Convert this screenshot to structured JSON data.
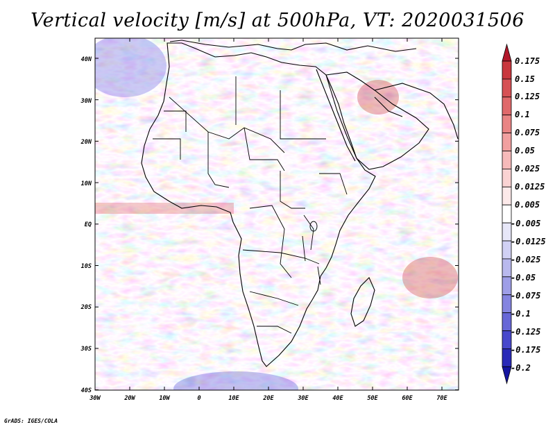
{
  "title": "Vertical velocity [m/s] at 500hPa, VT: 2020031506",
  "footer": "GrADS: IGES/COLA",
  "map": {
    "lat_labels": [
      "40N",
      "30N",
      "20N",
      "10N",
      "EQ",
      "10S",
      "20S",
      "30S",
      "40S"
    ],
    "lon_labels": [
      "30W",
      "20W",
      "10W",
      "0",
      "10E",
      "20E",
      "30E",
      "40E",
      "50E",
      "60E",
      "70E"
    ],
    "lon_range": [
      -30,
      75
    ],
    "lat_range": [
      -40,
      45
    ]
  },
  "colorbar": {
    "labels": [
      "0.175",
      "0.15",
      "0.125",
      "0.1",
      "0.075",
      "0.05",
      "0.025",
      "0.0125",
      "0.005",
      "-0.005",
      "-0.0125",
      "-0.025",
      "-0.05",
      "-0.075",
      "-0.1",
      "-0.125",
      "-0.175",
      "-0.2"
    ],
    "colors": [
      "#b2182b",
      "#c9373e",
      "#d65155",
      "#e0696b",
      "#e98484",
      "#f1a0a0",
      "#f6baba",
      "#fad3d3",
      "#fdeaea",
      "#ffffff",
      "#e7e7f8",
      "#d1d1f4",
      "#b9b9ee",
      "#9e9ee7",
      "#8484e0",
      "#6767d7",
      "#4848cc",
      "#2a2ab8",
      "#1515a0"
    ]
  }
}
